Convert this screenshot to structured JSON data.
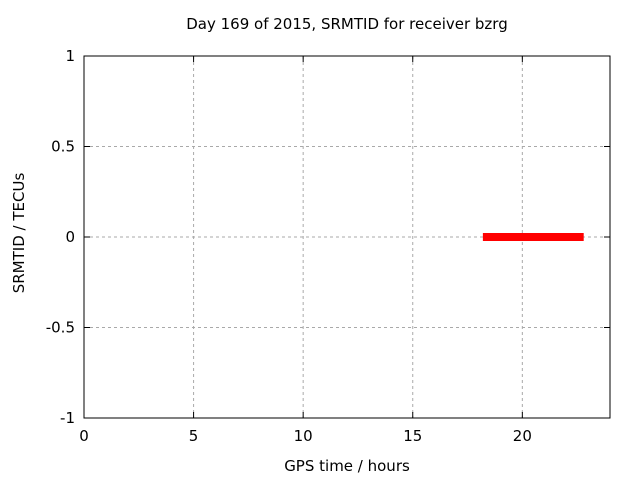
{
  "chart_data": {
    "type": "line",
    "title": "Day 169 of 2015, SRMTID for receiver bzrg",
    "xlabel": "GPS time / hours",
    "ylabel": "SRMTID / TECUs",
    "xlim": [
      0,
      24
    ],
    "ylim": [
      -1,
      1
    ],
    "xticks": [
      0,
      5,
      10,
      15,
      20
    ],
    "xtick_labels": [
      "0",
      "5",
      "10",
      "15",
      "20"
    ],
    "yticks": [
      1,
      0.5,
      0,
      -0.5,
      -1
    ],
    "ytick_labels": [
      "1",
      "0.5",
      "0",
      "-0.5",
      "-1"
    ],
    "grid": "dashed",
    "legend": "none",
    "series": [
      {
        "name": "SRMTID",
        "color": "#ff0000",
        "linewidth": 8,
        "x": [
          18.2,
          22.8
        ],
        "y": [
          0,
          0
        ]
      }
    ]
  },
  "colors": {
    "background": "#ffffff",
    "border": "#000000",
    "grid": "#a9a9a9",
    "series_red": "#ff0000",
    "text": "#000000"
  }
}
